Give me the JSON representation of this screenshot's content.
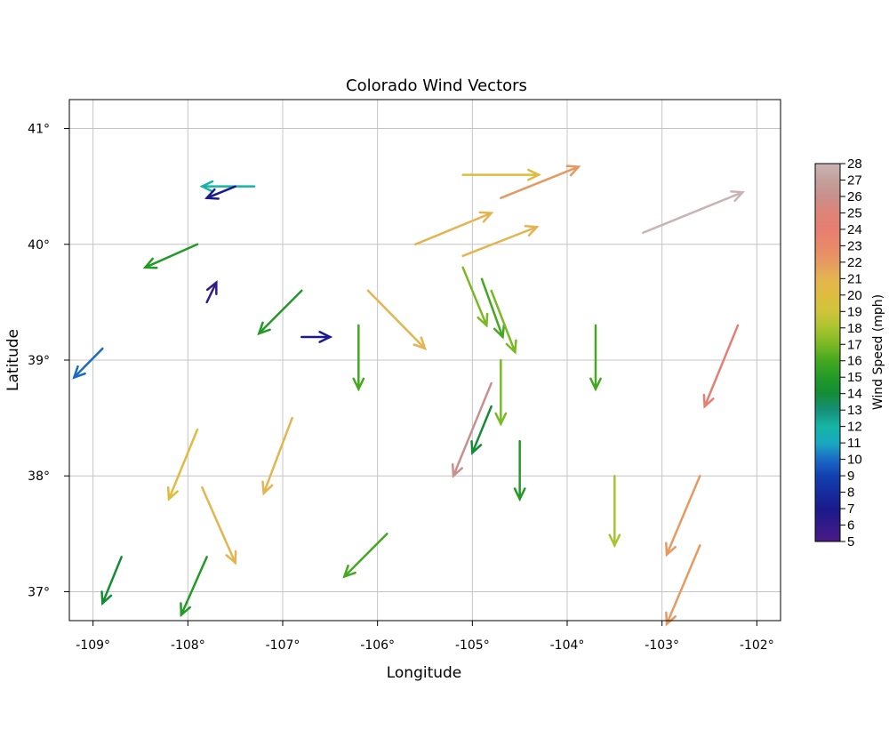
{
  "chart_data": {
    "type": "quiver",
    "title": "Colorado Wind Vectors",
    "xlabel": "Longitude",
    "ylabel": "Latitude",
    "colorbar_label": "Wind Speed (mph)",
    "xlim": [
      -109.25,
      -101.75
    ],
    "ylim": [
      36.75,
      41.25
    ],
    "xticks": [
      -109,
      -108,
      -107,
      -106,
      -105,
      -104,
      -103,
      -102
    ],
    "xtick_labels": [
      "-109°",
      "-108°",
      "-107°",
      "-106°",
      "-105°",
      "-104°",
      "-103°",
      "-102°"
    ],
    "yticks": [
      37,
      38,
      39,
      40,
      41
    ],
    "ytick_labels": [
      "37°",
      "38°",
      "39°",
      "40°",
      "41°"
    ],
    "colorbar_range": [
      5,
      28
    ],
    "colorbar_ticks": [
      5,
      6,
      7,
      8,
      9,
      10,
      11,
      12,
      13,
      14,
      15,
      16,
      17,
      18,
      19,
      20,
      21,
      22,
      23,
      24,
      25,
      26,
      27,
      28
    ],
    "grid": true,
    "vectors": [
      {
        "x": -108.7,
        "y": 37.3,
        "dx": -0.2,
        "dy": -0.4,
        "speed": 14
      },
      {
        "x": -107.8,
        "y": 37.3,
        "dx": -0.27,
        "dy": -0.5,
        "speed": 15
      },
      {
        "x": -108.9,
        "y": 39.1,
        "dx": -0.3,
        "dy": -0.25,
        "speed": 10
      },
      {
        "x": -107.9,
        "y": 38.4,
        "dx": -0.3,
        "dy": -0.6,
        "speed": 20
      },
      {
        "x": -107.85,
        "y": 37.9,
        "dx": 0.35,
        "dy": -0.65,
        "speed": 21
      },
      {
        "x": -106.9,
        "y": 38.5,
        "dx": -0.3,
        "dy": -0.65,
        "speed": 21
      },
      {
        "x": -107.9,
        "y": 40.0,
        "dx": -0.55,
        "dy": -0.2,
        "speed": 15
      },
      {
        "x": -107.8,
        "y": 39.5,
        "dx": 0.1,
        "dy": 0.17,
        "speed": 6
      },
      {
        "x": -107.3,
        "y": 40.5,
        "dx": -0.55,
        "dy": 0.0,
        "speed": 12
      },
      {
        "x": -107.5,
        "y": 40.5,
        "dx": -0.3,
        "dy": -0.1,
        "speed": 7
      },
      {
        "x": -106.8,
        "y": 39.6,
        "dx": -0.45,
        "dy": -0.37,
        "speed": 15
      },
      {
        "x": -106.8,
        "y": 39.2,
        "dx": 0.3,
        "dy": 0.0,
        "speed": 7
      },
      {
        "x": -106.2,
        "y": 39.3,
        "dx": 0.0,
        "dy": -0.55,
        "speed": 16
      },
      {
        "x": -106.1,
        "y": 39.6,
        "dx": 0.6,
        "dy": -0.5,
        "speed": 21
      },
      {
        "x": -105.9,
        "y": 37.5,
        "dx": -0.45,
        "dy": -0.37,
        "speed": 16
      },
      {
        "x": -105.6,
        "y": 40.0,
        "dx": 0.8,
        "dy": 0.27,
        "speed": 21
      },
      {
        "x": -105.1,
        "y": 40.6,
        "dx": 0.8,
        "dy": 0.0,
        "speed": 20
      },
      {
        "x": -105.1,
        "y": 39.9,
        "dx": 0.78,
        "dy": 0.25,
        "speed": 21
      },
      {
        "x": -104.7,
        "y": 40.4,
        "dx": 0.82,
        "dy": 0.27,
        "speed": 22
      },
      {
        "x": -105.1,
        "y": 39.8,
        "dx": 0.25,
        "dy": -0.5,
        "speed": 17
      },
      {
        "x": -104.9,
        "y": 39.7,
        "dx": 0.22,
        "dy": -0.5,
        "speed": 16
      },
      {
        "x": -104.8,
        "y": 39.6,
        "dx": 0.25,
        "dy": -0.53,
        "speed": 17
      },
      {
        "x": -104.7,
        "y": 39.0,
        "dx": 0.0,
        "dy": -0.55,
        "speed": 17
      },
      {
        "x": -104.8,
        "y": 38.8,
        "dx": -0.4,
        "dy": -0.8,
        "speed": 26
      },
      {
        "x": -104.8,
        "y": 38.6,
        "dx": -0.2,
        "dy": -0.4,
        "speed": 14
      },
      {
        "x": -104.5,
        "y": 38.3,
        "dx": 0.0,
        "dy": -0.5,
        "speed": 15
      },
      {
        "x": -103.7,
        "y": 39.3,
        "dx": 0.0,
        "dy": -0.55,
        "speed": 16
      },
      {
        "x": -103.5,
        "y": 38.0,
        "dx": 0.0,
        "dy": -0.6,
        "speed": 18
      },
      {
        "x": -103.2,
        "y": 40.1,
        "dx": 1.05,
        "dy": 0.35,
        "speed": 28
      },
      {
        "x": -102.2,
        "y": 39.3,
        "dx": -0.35,
        "dy": -0.7,
        "speed": 24
      },
      {
        "x": -102.6,
        "y": 38.0,
        "dx": -0.35,
        "dy": -0.68,
        "speed": 22
      },
      {
        "x": -102.6,
        "y": 37.4,
        "dx": -0.35,
        "dy": -0.68,
        "speed": 22
      }
    ]
  }
}
